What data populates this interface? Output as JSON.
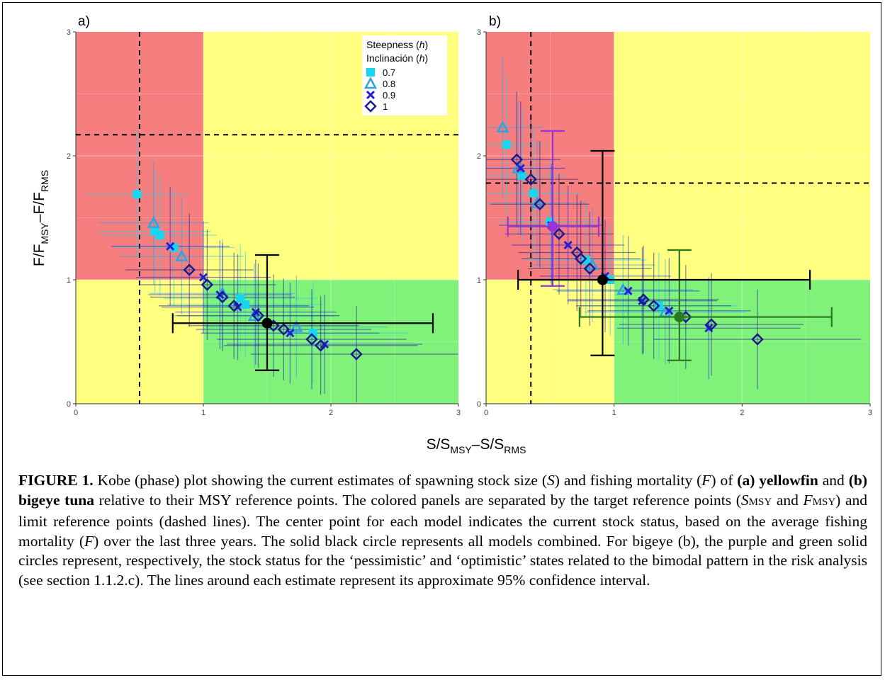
{
  "figure": {
    "xlabel_parts": [
      "S/S",
      "MSY",
      "–S/S",
      "RMS"
    ],
    "ylabel_parts": [
      "F/F",
      "MSY",
      "–F/F",
      "RMS"
    ],
    "colors": {
      "red_zone": "#f77e7e",
      "yellow_zone": "#ffff80",
      "green_zone": "#80f27a",
      "h07": "#19d6f0",
      "h08": "#2ba3e8",
      "h09": "#1f1fd6",
      "h1": "#1b1b8c",
      "combined": "#000000",
      "pessimistic": "#9a33d6",
      "optimistic": "#2a7a22"
    },
    "legend": {
      "title_line1": "Steepness (h)",
      "title_line2": "Inclinación (h)",
      "items": [
        {
          "label": "0.7",
          "marker": "square",
          "color": "#19d6f0"
        },
        {
          "label": "0.8",
          "marker": "triangle",
          "color": "#2ba3e8"
        },
        {
          "label": "0.9",
          "marker": "x",
          "color": "#1f1fd6"
        },
        {
          "label": "1",
          "marker": "diamond",
          "color": "#1b1b8c"
        }
      ]
    }
  },
  "chart_data": [
    {
      "type": "scatter",
      "panel_label": "a)",
      "xlim": [
        0,
        3
      ],
      "ylim": [
        0,
        3
      ],
      "x_ticks": [
        "0",
        "1",
        "2",
        "3"
      ],
      "y_ticks": [
        "0",
        "1",
        "2",
        "3"
      ],
      "grid": true,
      "legend_position": "top-right",
      "zones": {
        "x_split": 1,
        "y_split": 1
      },
      "limit_lines": {
        "x": 0.5,
        "y": 2.17
      },
      "series": [
        {
          "name": "0.7",
          "marker": "square",
          "points": [
            [
              0.48,
              1.69
            ],
            [
              0.62,
              1.39
            ],
            [
              0.66,
              1.36
            ],
            [
              0.77,
              1.26
            ],
            [
              1.29,
              0.85
            ],
            [
              1.33,
              0.8
            ],
            [
              1.86,
              0.57
            ]
          ]
        },
        {
          "name": "0.8",
          "marker": "triangle",
          "points": [
            [
              0.61,
              1.46
            ],
            [
              0.83,
              1.19
            ],
            [
              1.15,
              0.89
            ],
            [
              1.4,
              0.71
            ],
            [
              1.73,
              0.62
            ]
          ]
        },
        {
          "name": "0.9",
          "marker": "x",
          "points": [
            [
              0.74,
              1.27
            ],
            [
              1.0,
              1.02
            ],
            [
              1.13,
              0.88
            ],
            [
              1.27,
              0.78
            ],
            [
              1.41,
              0.74
            ],
            [
              1.68,
              0.57
            ],
            [
              1.95,
              0.48
            ]
          ]
        },
        {
          "name": "1",
          "marker": "diamond",
          "points": [
            [
              0.89,
              1.08
            ],
            [
              1.03,
              0.96
            ],
            [
              1.15,
              0.86
            ],
            [
              1.24,
              0.79
            ],
            [
              1.43,
              0.71
            ],
            [
              1.55,
              0.63
            ],
            [
              1.63,
              0.6
            ],
            [
              1.85,
              0.52
            ],
            [
              1.92,
              0.47
            ],
            [
              2.2,
              0.4
            ]
          ]
        }
      ],
      "combined": {
        "label": "All models",
        "x": 1.5,
        "y": 0.65,
        "x_ci": [
          0.76,
          2.8
        ],
        "y_ci": [
          0.27,
          1.2
        ]
      }
    },
    {
      "type": "scatter",
      "panel_label": "b)",
      "xlim": [
        0,
        3
      ],
      "ylim": [
        0,
        3
      ],
      "x_ticks": [
        "0",
        "1",
        "2",
        "3"
      ],
      "y_ticks": [
        "0",
        "1",
        "2",
        "3"
      ],
      "grid": true,
      "zones": {
        "x_split": 1,
        "y_split": 1
      },
      "limit_lines": {
        "x": 0.35,
        "y": 1.78
      },
      "series": [
        {
          "name": "0.7",
          "marker": "square",
          "points": [
            [
              0.16,
              2.09
            ],
            [
              0.28,
              1.84
            ],
            [
              0.37,
              1.7
            ],
            [
              0.5,
              1.47
            ],
            [
              0.78,
              1.16
            ],
            [
              0.97,
              1.0
            ],
            [
              1.35,
              0.79
            ]
          ]
        },
        {
          "name": "0.8",
          "marker": "triangle",
          "points": [
            [
              0.13,
              2.23
            ],
            [
              0.25,
              1.9
            ],
            [
              0.4,
              1.62
            ],
            [
              0.83,
              1.12
            ],
            [
              1.07,
              0.92
            ],
            [
              1.4,
              0.74
            ]
          ]
        },
        {
          "name": "0.9",
          "marker": "x",
          "points": [
            [
              0.27,
              1.9
            ],
            [
              0.51,
              1.44
            ],
            [
              0.64,
              1.28
            ],
            [
              0.93,
              1.03
            ],
            [
              1.11,
              0.91
            ],
            [
              1.22,
              0.83
            ],
            [
              1.43,
              0.75
            ],
            [
              1.74,
              0.61
            ]
          ]
        },
        {
          "name": "1",
          "marker": "diamond",
          "points": [
            [
              0.24,
              1.97
            ],
            [
              0.35,
              1.81
            ],
            [
              0.42,
              1.61
            ],
            [
              0.57,
              1.37
            ],
            [
              0.71,
              1.22
            ],
            [
              0.74,
              1.17
            ],
            [
              0.81,
              1.09
            ],
            [
              1.23,
              0.84
            ],
            [
              1.31,
              0.79
            ],
            [
              1.56,
              0.7
            ],
            [
              1.76,
              0.64
            ],
            [
              2.12,
              0.52
            ]
          ]
        }
      ],
      "combined": {
        "label": "All models",
        "x": 0.91,
        "y": 1.0,
        "x_ci": [
          0.25,
          2.53
        ],
        "y_ci": [
          0.39,
          2.04
        ]
      },
      "pessimistic": {
        "x": 0.52,
        "y": 1.43,
        "x_ci": [
          0.17,
          0.88
        ],
        "y_ci": [
          0.95,
          2.2
        ]
      },
      "optimistic": {
        "x": 1.51,
        "y": 0.7,
        "x_ci": [
          0.73,
          2.7
        ],
        "y_ci": [
          0.35,
          1.24
        ]
      }
    }
  ],
  "caption": {
    "label": "FIGURE 1.",
    "t1": " Kobe (phase) plot showing the current estimates of spawning stock size (",
    "S": "S",
    "t2": ") and fishing mortality (",
    "F": "F",
    "t3": ") of ",
    "b1": "(a) yellowfin",
    "t4": " and ",
    "b2": "(b) bigeye tuna",
    "t5": " relative to their MSY reference points. The colored panels are separated by the target reference points (",
    "S_msy_base": "S",
    "msy_sub1": "MSY",
    "t6": " and ",
    "F_msy_base": "F",
    "msy_sub2": "MSY",
    "t7": ") and limit reference points (dashed lines). The center point for each model indicates the current stock status, based on the average fishing mortality (",
    "F2": "F",
    "t8": ") over the last three years. The solid black circle represents all models combined. For bigeye (b), the purple and green solid circles represent, respectively, the stock status for the ‘pessimistic’ and ‘optimistic’ states related to the bimodal pattern in the risk analysis (see section 1.1.2.c). The lines around each estimate represent its approximate 95% confidence interval."
  }
}
